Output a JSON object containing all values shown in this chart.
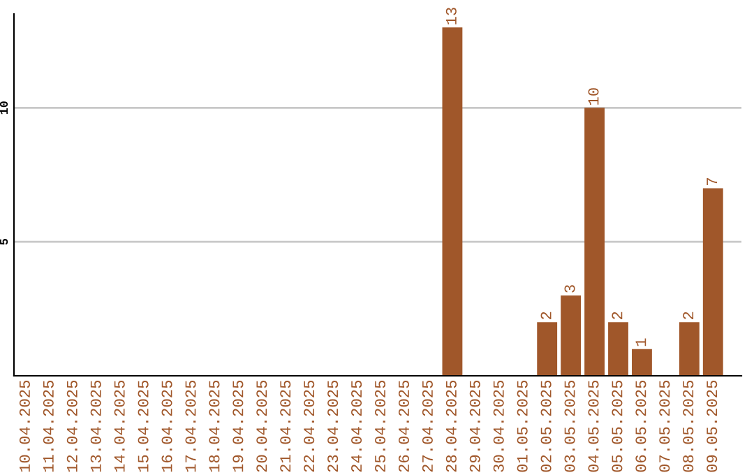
{
  "chart_data": {
    "type": "bar",
    "categories": [
      "10.04.2025",
      "11.04.2025",
      "12.04.2025",
      "13.04.2025",
      "14.04.2025",
      "15.04.2025",
      "16.04.2025",
      "17.04.2025",
      "18.04.2025",
      "19.04.2025",
      "20.04.2025",
      "21.04.2025",
      "22.04.2025",
      "23.04.2025",
      "24.04.2025",
      "25.04.2025",
      "26.04.2025",
      "27.04.2025",
      "28.04.2025",
      "29.04.2025",
      "30.04.2025",
      "01.05.2025",
      "02.05.2025",
      "03.05.2025",
      "04.05.2025",
      "05.05.2025",
      "06.05.2025",
      "07.05.2025",
      "08.05.2025",
      "09.05.2025"
    ],
    "values": [
      0,
      0,
      0,
      0,
      0,
      0,
      0,
      0,
      0,
      0,
      0,
      0,
      0,
      0,
      0,
      0,
      0,
      0,
      13,
      0,
      0,
      0,
      2,
      3,
      10,
      2,
      1,
      0,
      2,
      7
    ],
    "value_labels": [
      null,
      null,
      null,
      null,
      null,
      null,
      null,
      null,
      null,
      null,
      null,
      null,
      null,
      null,
      null,
      null,
      null,
      null,
      "13",
      null,
      null,
      null,
      "2",
      "3",
      "10",
      "2",
      "1",
      null,
      "2",
      "7"
    ],
    "color": "#a0572a",
    "ylim": [
      0,
      13.5
    ],
    "yticks": [
      5,
      10
    ],
    "grid": "y"
  }
}
